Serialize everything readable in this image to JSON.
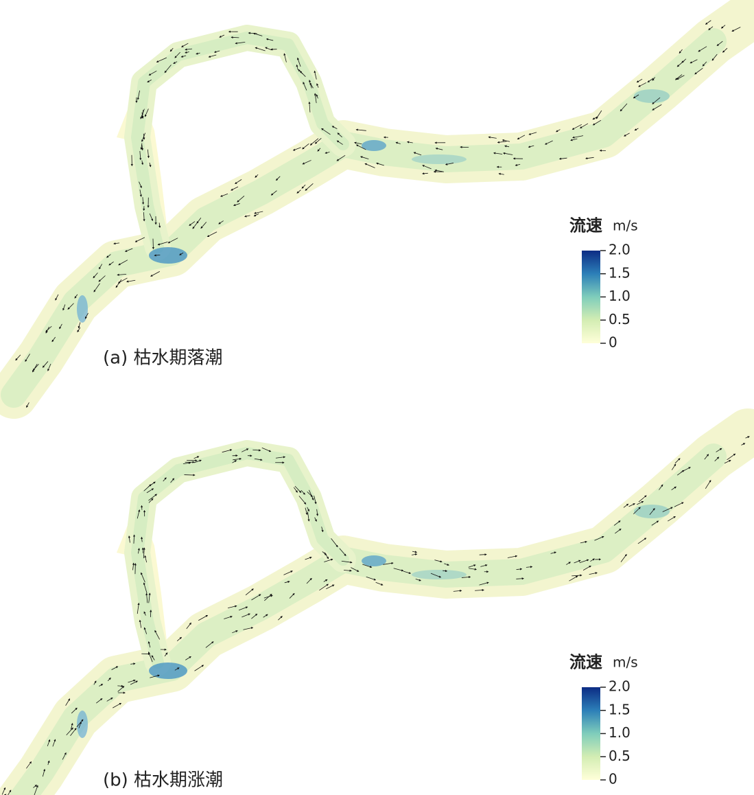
{
  "panels": [
    {
      "label": "(a) 枯水期落潮"
    },
    {
      "label": "(b) 枯水期涨潮"
    }
  ],
  "colorbar": {
    "title": "流速",
    "unit": "m/s",
    "range": [
      0,
      2
    ],
    "ticks": [
      {
        "value": 2,
        "label": "2.0"
      },
      {
        "value": 1.5,
        "label": "1.5"
      },
      {
        "value": 1,
        "label": "1.0"
      },
      {
        "value": 0.5,
        "label": "0.5"
      },
      0
    ]
  }
}
